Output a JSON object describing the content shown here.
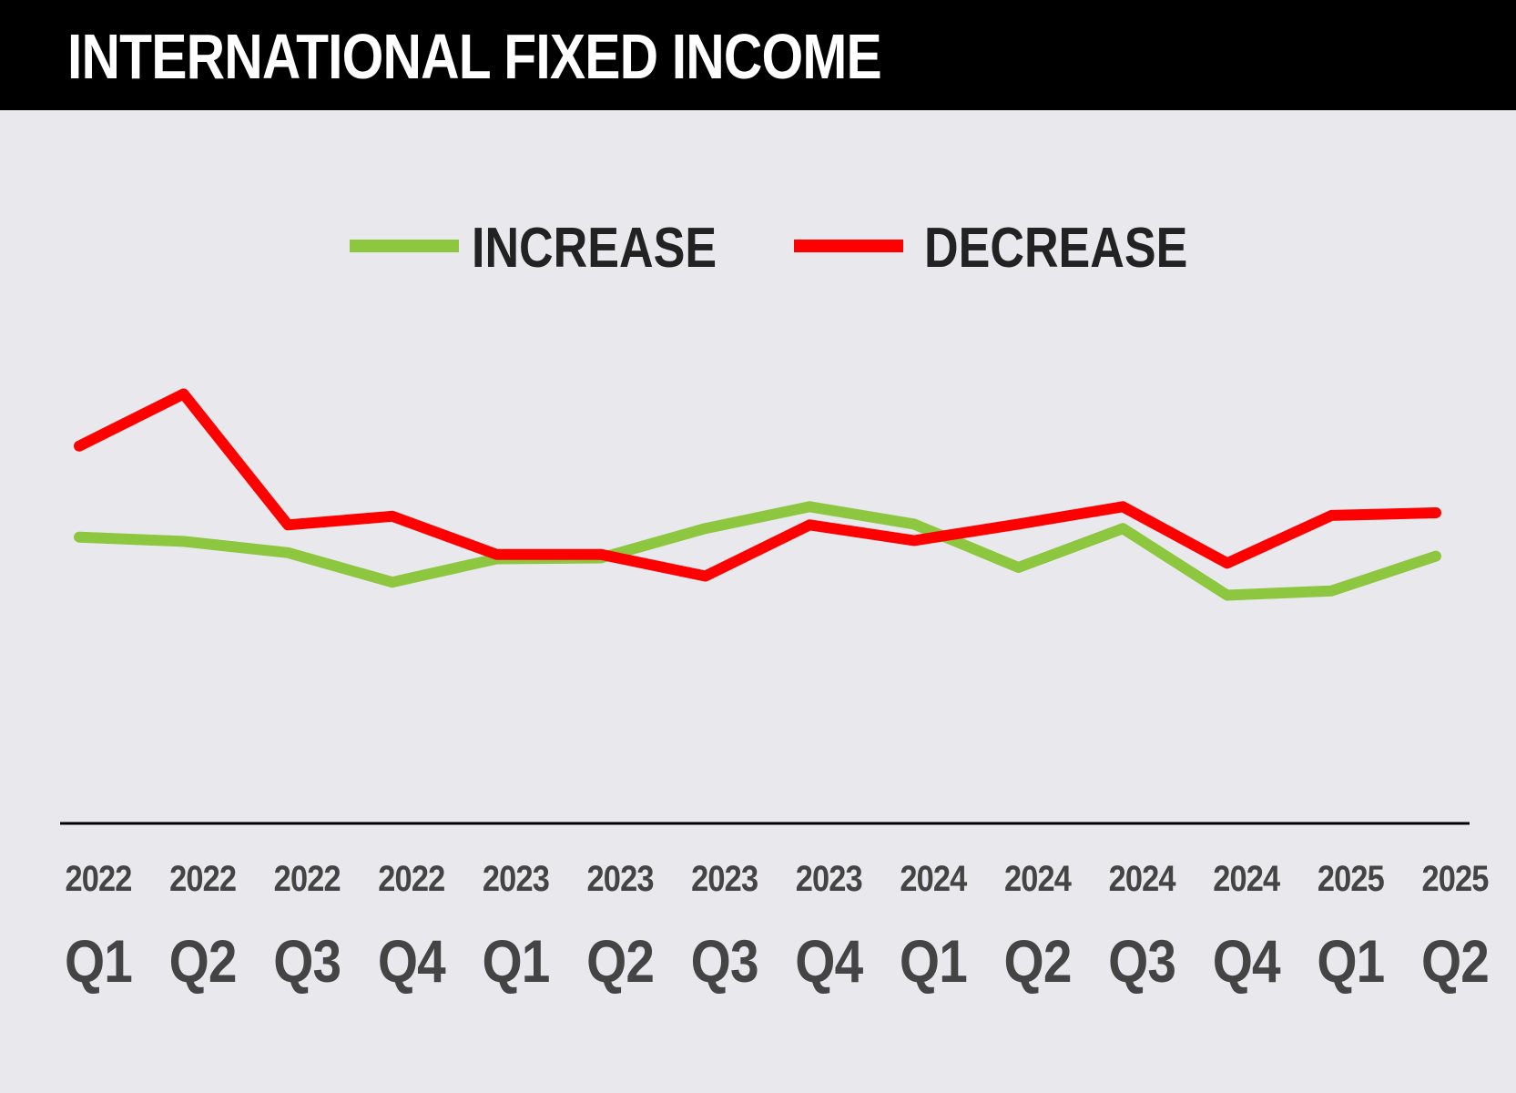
{
  "title": "INTERNATIONAL FIXED INCOME",
  "chart_data": {
    "type": "line",
    "title": "INTERNATIONAL FIXED INCOME",
    "categories": [
      {
        "year": "2022",
        "quarter": "Q1"
      },
      {
        "year": "2022",
        "quarter": "Q2"
      },
      {
        "year": "2022",
        "quarter": "Q3"
      },
      {
        "year": "2022",
        "quarter": "Q4"
      },
      {
        "year": "2023",
        "quarter": "Q1"
      },
      {
        "year": "2023",
        "quarter": "Q2"
      },
      {
        "year": "2023",
        "quarter": "Q3"
      },
      {
        "year": "2023",
        "quarter": "Q4"
      },
      {
        "year": "2024",
        "quarter": "Q1"
      },
      {
        "year": "2024",
        "quarter": "Q2"
      },
      {
        "year": "2024",
        "quarter": "Q3"
      },
      {
        "year": "2024",
        "quarter": "Q4"
      },
      {
        "year": "2025",
        "quarter": "Q1"
      },
      {
        "year": "2025",
        "quarter": "Q2"
      }
    ],
    "series": [
      {
        "name": "INCREASE",
        "color": "#8dc63f",
        "values": [
          33.0,
          32.5,
          31.2,
          27.8,
          30.5,
          30.6,
          34.0,
          36.5,
          34.5,
          29.5,
          34.0,
          26.3,
          26.8,
          30.8
        ]
      },
      {
        "name": "DECREASE",
        "color": "#ff0000",
        "values": [
          43.5,
          49.5,
          34.4,
          35.4,
          31.0,
          31.0,
          28.5,
          34.4,
          32.6,
          34.5,
          36.5,
          30.0,
          35.5,
          35.8
        ]
      }
    ],
    "ylim": [
      0,
      80
    ],
    "legend_position": "top-center",
    "grid": false,
    "axis_line_color": "#000000",
    "background": "#e8e8ed"
  }
}
